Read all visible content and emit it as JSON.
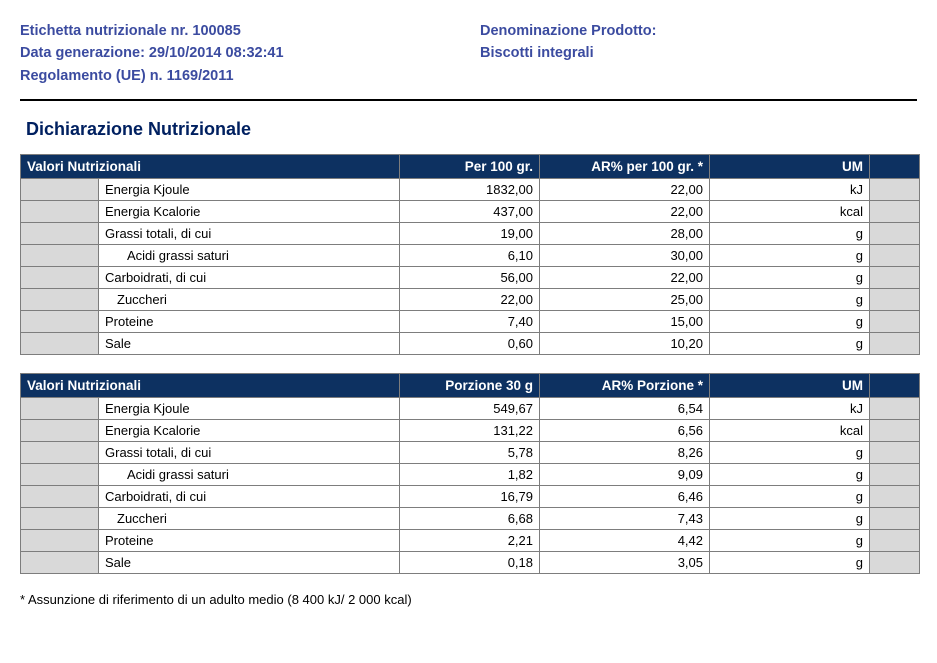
{
  "header": {
    "line1_left": "Etichetta nutrizionale nr. 100085",
    "line2_left": "Data generazione: 29/10/2014 08:32:41",
    "line3_left": "Regolamento (UE) n. 1169/2011",
    "line1_right": "Denominazione Prodotto:",
    "line2_right": "Biscotti integrali",
    "text_color": "#3b4ba0"
  },
  "section_title": "Dichiarazione Nutrizionale",
  "section_title_color": "#002060",
  "table_header_bg": "#0d3161",
  "table_header_fg": "#ffffff",
  "stripe_bg": "#d9d9d9",
  "border_color": "#7d7d7d",
  "table1": {
    "headers": {
      "name": "Valori Nutrizionali",
      "v1": "Per 100 gr.",
      "v2": "AR% per 100 gr. *",
      "um": "UM"
    },
    "rows": [
      {
        "name": "Energia Kjoule",
        "indent": 0,
        "v1": "1832,00",
        "v2": "22,00",
        "um": "kJ"
      },
      {
        "name": "Energia Kcalorie",
        "indent": 0,
        "v1": "437,00",
        "v2": "22,00",
        "um": "kcal"
      },
      {
        "name": "Grassi totali, di cui",
        "indent": 0,
        "v1": "19,00",
        "v2": "28,00",
        "um": "g"
      },
      {
        "name": "Acidi grassi saturi",
        "indent": 1,
        "v1": "6,10",
        "v2": "30,00",
        "um": "g"
      },
      {
        "name": "Carboidrati, di cui",
        "indent": 0,
        "v1": "56,00",
        "v2": "22,00",
        "um": "g"
      },
      {
        "name": "Zuccheri",
        "indent": 2,
        "v1": "22,00",
        "v2": "25,00",
        "um": "g"
      },
      {
        "name": "Proteine",
        "indent": 0,
        "v1": "7,40",
        "v2": "15,00",
        "um": "g"
      },
      {
        "name": "Sale",
        "indent": 0,
        "v1": "0,60",
        "v2": "10,20",
        "um": "g"
      }
    ]
  },
  "table2": {
    "headers": {
      "name": "Valori Nutrizionali",
      "v1": "Porzione 30 g",
      "v2": "AR% Porzione *",
      "um": "UM"
    },
    "rows": [
      {
        "name": "Energia Kjoule",
        "indent": 0,
        "v1": "549,67",
        "v2": "6,54",
        "um": "kJ"
      },
      {
        "name": "Energia Kcalorie",
        "indent": 0,
        "v1": "131,22",
        "v2": "6,56",
        "um": "kcal"
      },
      {
        "name": "Grassi totali, di cui",
        "indent": 0,
        "v1": "5,78",
        "v2": "8,26",
        "um": "g"
      },
      {
        "name": "Acidi grassi saturi",
        "indent": 1,
        "v1": "1,82",
        "v2": "9,09",
        "um": "g"
      },
      {
        "name": "Carboidrati, di cui",
        "indent": 0,
        "v1": "16,79",
        "v2": "6,46",
        "um": "g"
      },
      {
        "name": "Zuccheri",
        "indent": 2,
        "v1": "6,68",
        "v2": "7,43",
        "um": "g"
      },
      {
        "name": "Proteine",
        "indent": 0,
        "v1": "2,21",
        "v2": "4,42",
        "um": "g"
      },
      {
        "name": "Sale",
        "indent": 0,
        "v1": "0,18",
        "v2": "3,05",
        "um": "g"
      }
    ]
  },
  "footnote": "* Assunzione di riferimento di un adulto medio (8 400 kJ/ 2 000 kcal)"
}
